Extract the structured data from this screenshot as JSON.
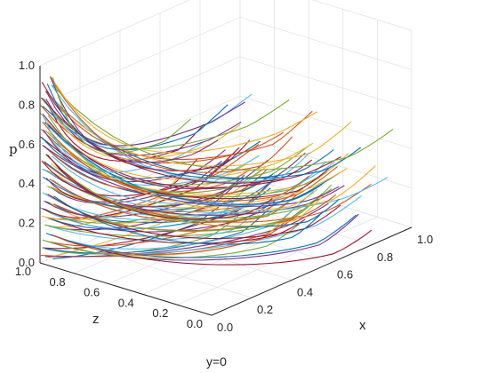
{
  "chart_data": {
    "type": "line",
    "projection": "3d",
    "axes": {
      "x": {
        "label": "x",
        "range": [
          0,
          1
        ],
        "ticks": [
          "0.0",
          "0.2",
          "0.4",
          "0.6",
          "0.8",
          "1.0"
        ]
      },
      "z": {
        "label": "z",
        "range": [
          0,
          1
        ],
        "ticks": [
          "0.0",
          "0.2",
          "0.4",
          "0.6",
          "0.8",
          "1.0"
        ]
      },
      "p": {
        "label": "p",
        "range": [
          0,
          1
        ],
        "ticks": [
          "0.0",
          "0.2",
          "0.4",
          "0.6",
          "0.8",
          "1.0"
        ]
      }
    },
    "grid": true,
    "legend": "none",
    "footer": "y=0",
    "colors": [
      "#0072BD",
      "#D95319",
      "#EDB120",
      "#7E2F8E",
      "#77AC30",
      "#4DBEEE",
      "#A2142F"
    ],
    "start_p": [
      0.04,
      0.08,
      0.12,
      0.16,
      0.2,
      0.24,
      0.28,
      0.32,
      0.36,
      0.4,
      0.44,
      0.48,
      0.52,
      0.56,
      0.6,
      0.64,
      0.68,
      0.72,
      0.76,
      0.8,
      0.84,
      0.88,
      0.92,
      0.96
    ],
    "start_z": [
      1.0,
      0.9,
      0.8,
      0.7,
      0.6,
      0.5,
      0.4,
      0.3,
      0.2,
      0.1
    ],
    "end_x": 1.0,
    "end_z": 0.0,
    "end_p": [
      0.0,
      0.22,
      0.42,
      0.62,
      0.82
    ]
  }
}
